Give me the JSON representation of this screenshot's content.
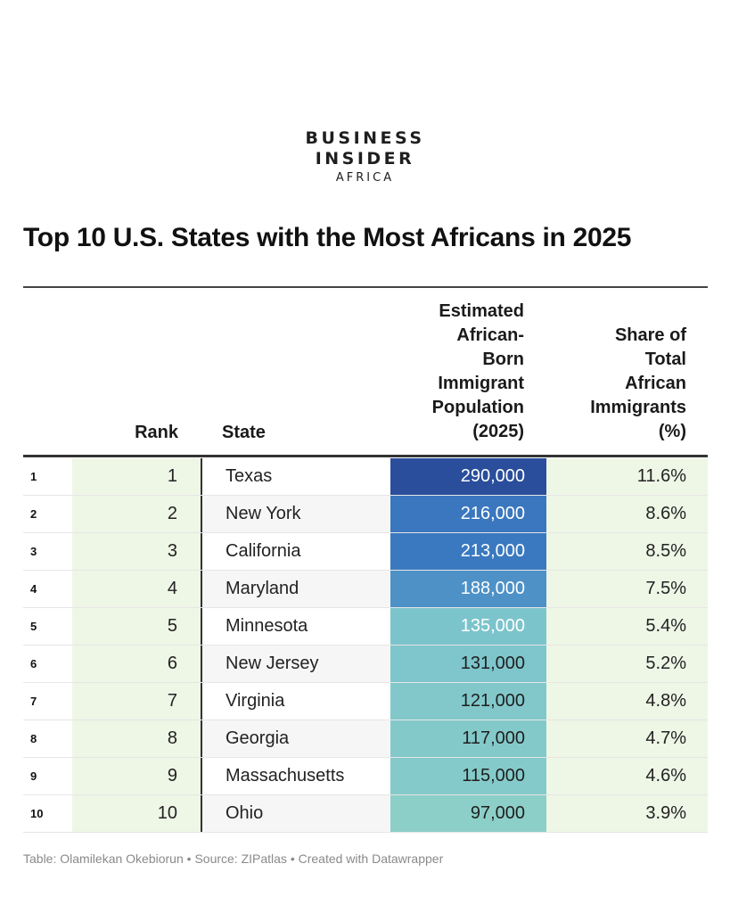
{
  "logo": {
    "line1": "BUSINESS",
    "line2": "INSIDER",
    "line3": "AFRICA"
  },
  "colors": {
    "high": "#2a4e9c",
    "mid": "#3d80c5",
    "low": "#7cc4cc",
    "lightest": "#8dd0c8",
    "tint": "#eef6e6"
  },
  "chart_data": {
    "type": "table",
    "title": "Top 10 U.S. States with the Most Africans in 2025",
    "headers": {
      "rank": "Rank",
      "state": "State",
      "population": [
        "Estimated",
        "African-",
        "Born",
        "Immigrant",
        "Population",
        "(2025)"
      ],
      "share": [
        "Share of",
        "Total",
        "African",
        "Immigrants",
        "(%)"
      ]
    },
    "rows": [
      {
        "index": "1",
        "rank": "1",
        "state": "Texas",
        "population": "290,000",
        "share": "11.6%",
        "value": 290000
      },
      {
        "index": "2",
        "rank": "2",
        "state": "New York",
        "population": "216,000",
        "share": "8.6%",
        "value": 216000
      },
      {
        "index": "3",
        "rank": "3",
        "state": "California",
        "population": "213,000",
        "share": "8.5%",
        "value": 213000
      },
      {
        "index": "4",
        "rank": "4",
        "state": "Maryland",
        "population": "188,000",
        "share": "7.5%",
        "value": 188000
      },
      {
        "index": "5",
        "rank": "5",
        "state": "Minnesota",
        "population": "135,000",
        "share": "5.4%",
        "value": 135000
      },
      {
        "index": "6",
        "rank": "6",
        "state": "New Jersey",
        "population": "131,000",
        "share": "5.2%",
        "value": 131000
      },
      {
        "index": "7",
        "rank": "7",
        "state": "Virginia",
        "population": "121,000",
        "share": "4.8%",
        "value": 121000
      },
      {
        "index": "8",
        "rank": "8",
        "state": "Georgia",
        "population": "117,000",
        "share": "4.7%",
        "value": 117000
      },
      {
        "index": "9",
        "rank": "9",
        "state": "Massachusetts",
        "population": "115,000",
        "share": "4.6%",
        "value": 115000
      },
      {
        "index": "10",
        "rank": "10",
        "state": "Ohio",
        "population": "97,000",
        "share": "3.9%",
        "value": 97000
      }
    ]
  },
  "footer": "Table: Olamilekan Okebiorun  • Source: ZIPatlas • Created with Datawrapper"
}
